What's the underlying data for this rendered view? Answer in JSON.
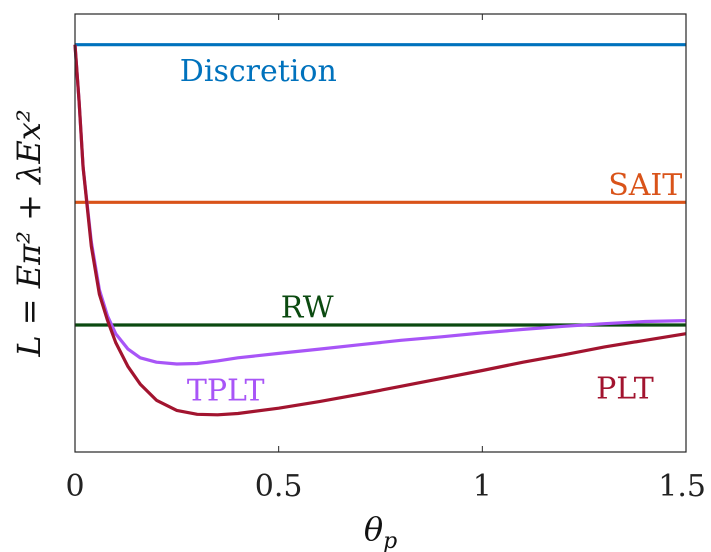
{
  "chart_data": {
    "type": "line",
    "xlabel": "θ",
    "xlabel_sub": "p",
    "ylabel": "L = Eπ² + λEx²",
    "xlim": [
      0,
      1.5
    ],
    "ylim": [
      0,
      1.0
    ],
    "xticks": [
      0,
      0.5,
      1,
      1.5
    ],
    "xtick_labels": [
      "0",
      "0.5",
      "1",
      "1.5"
    ],
    "yticks": [],
    "grid": false,
    "legend": "none",
    "series": [
      {
        "name": "Discretion",
        "color": "#0072BD",
        "x": [
          0,
          1.5
        ],
        "y": [
          0.93,
          0.93
        ],
        "label_x": 0.45,
        "label_y": 0.87
      },
      {
        "name": "SAIT",
        "color": "#D95319",
        "x": [
          0,
          1.5
        ],
        "y": [
          0.57,
          0.57
        ],
        "label_x": 1.4,
        "label_y": 0.61
      },
      {
        "name": "RW",
        "color": "#0B4A10",
        "x": [
          0,
          1.5
        ],
        "y": [
          0.29,
          0.29
        ],
        "label_x": 0.57,
        "label_y": 0.33
      },
      {
        "name": "TPLT",
        "color": "#A855F7",
        "x": [
          0,
          0.01,
          0.02,
          0.04,
          0.06,
          0.08,
          0.1,
          0.13,
          0.16,
          0.2,
          0.25,
          0.3,
          0.35,
          0.4,
          0.5,
          0.6,
          0.7,
          0.8,
          0.9,
          1.0,
          1.1,
          1.2,
          1.3,
          1.4,
          1.5
        ],
        "y": [
          0.93,
          0.8,
          0.65,
          0.48,
          0.37,
          0.31,
          0.27,
          0.235,
          0.215,
          0.205,
          0.201,
          0.202,
          0.208,
          0.215,
          0.225,
          0.235,
          0.245,
          0.255,
          0.263,
          0.272,
          0.28,
          0.287,
          0.293,
          0.298,
          0.3
        ],
        "label_x": 0.37,
        "label_y": 0.14
      },
      {
        "name": "PLT",
        "color": "#A2142F",
        "x": [
          0,
          0.01,
          0.02,
          0.04,
          0.06,
          0.08,
          0.1,
          0.13,
          0.16,
          0.2,
          0.25,
          0.3,
          0.35,
          0.4,
          0.5,
          0.6,
          0.7,
          0.8,
          0.9,
          1.0,
          1.1,
          1.2,
          1.3,
          1.4,
          1.5
        ],
        "y": [
          0.93,
          0.8,
          0.65,
          0.47,
          0.36,
          0.3,
          0.25,
          0.195,
          0.155,
          0.118,
          0.095,
          0.086,
          0.085,
          0.088,
          0.1,
          0.115,
          0.132,
          0.15,
          0.168,
          0.186,
          0.205,
          0.222,
          0.24,
          0.255,
          0.27
        ],
        "label_x": 1.35,
        "label_y": 0.145
      }
    ]
  }
}
